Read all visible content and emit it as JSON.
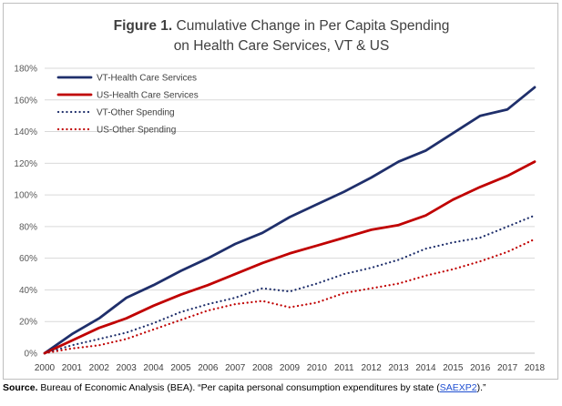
{
  "chart_data": {
    "type": "line",
    "title_prefix": "Figure 1.",
    "title_line1": "Cumulative Change in Per Capita Spending",
    "title_line2": "on Health Care Services, VT & US",
    "x": [
      "2000",
      "2001",
      "2002",
      "2003",
      "2004",
      "2005",
      "2006",
      "2007",
      "2008",
      "2009",
      "2010",
      "2011",
      "2012",
      "2013",
      "2014",
      "2015",
      "2016",
      "2017",
      "2018"
    ],
    "ylim": [
      0,
      180
    ],
    "yticks": [
      0,
      20,
      40,
      60,
      80,
      100,
      120,
      140,
      160,
      180
    ],
    "ytick_labels": [
      "0%",
      "20%",
      "40%",
      "60%",
      "80%",
      "100%",
      "120%",
      "140%",
      "160%",
      "180%"
    ],
    "grid": true,
    "legend_position": "top-left",
    "series": [
      {
        "name": "VT-Health Care Services",
        "color": "#1f2f6b",
        "style": "solid",
        "values": [
          0,
          12,
          22,
          35,
          43,
          52,
          60,
          69,
          76,
          86,
          94,
          102,
          111,
          121,
          128,
          139,
          150,
          154,
          168
        ]
      },
      {
        "name": "US-Health Care Services",
        "color": "#c00000",
        "style": "solid",
        "values": [
          0,
          8,
          16,
          22,
          30,
          37,
          43,
          50,
          57,
          63,
          68,
          73,
          78,
          81,
          87,
          97,
          105,
          112,
          121
        ]
      },
      {
        "name": "VT-Other Spending",
        "color": "#1f2f6b",
        "style": "dotted",
        "values": [
          0,
          5,
          9,
          13,
          19,
          26,
          31,
          35,
          41,
          39,
          44,
          50,
          54,
          59,
          66,
          70,
          73,
          80,
          87
        ]
      },
      {
        "name": "US-Other Spending",
        "color": "#c00000",
        "style": "dotted",
        "values": [
          0,
          3,
          5,
          9,
          15,
          21,
          27,
          31,
          33,
          29,
          32,
          38,
          41,
          44,
          49,
          53,
          58,
          64,
          72
        ]
      }
    ]
  },
  "source": {
    "label": "Source.",
    "text_before": " Bureau of Economic Analysis (BEA). “Per capita personal consumption expenditures by state (",
    "link": "SAEXP2",
    "text_after": ").”"
  }
}
